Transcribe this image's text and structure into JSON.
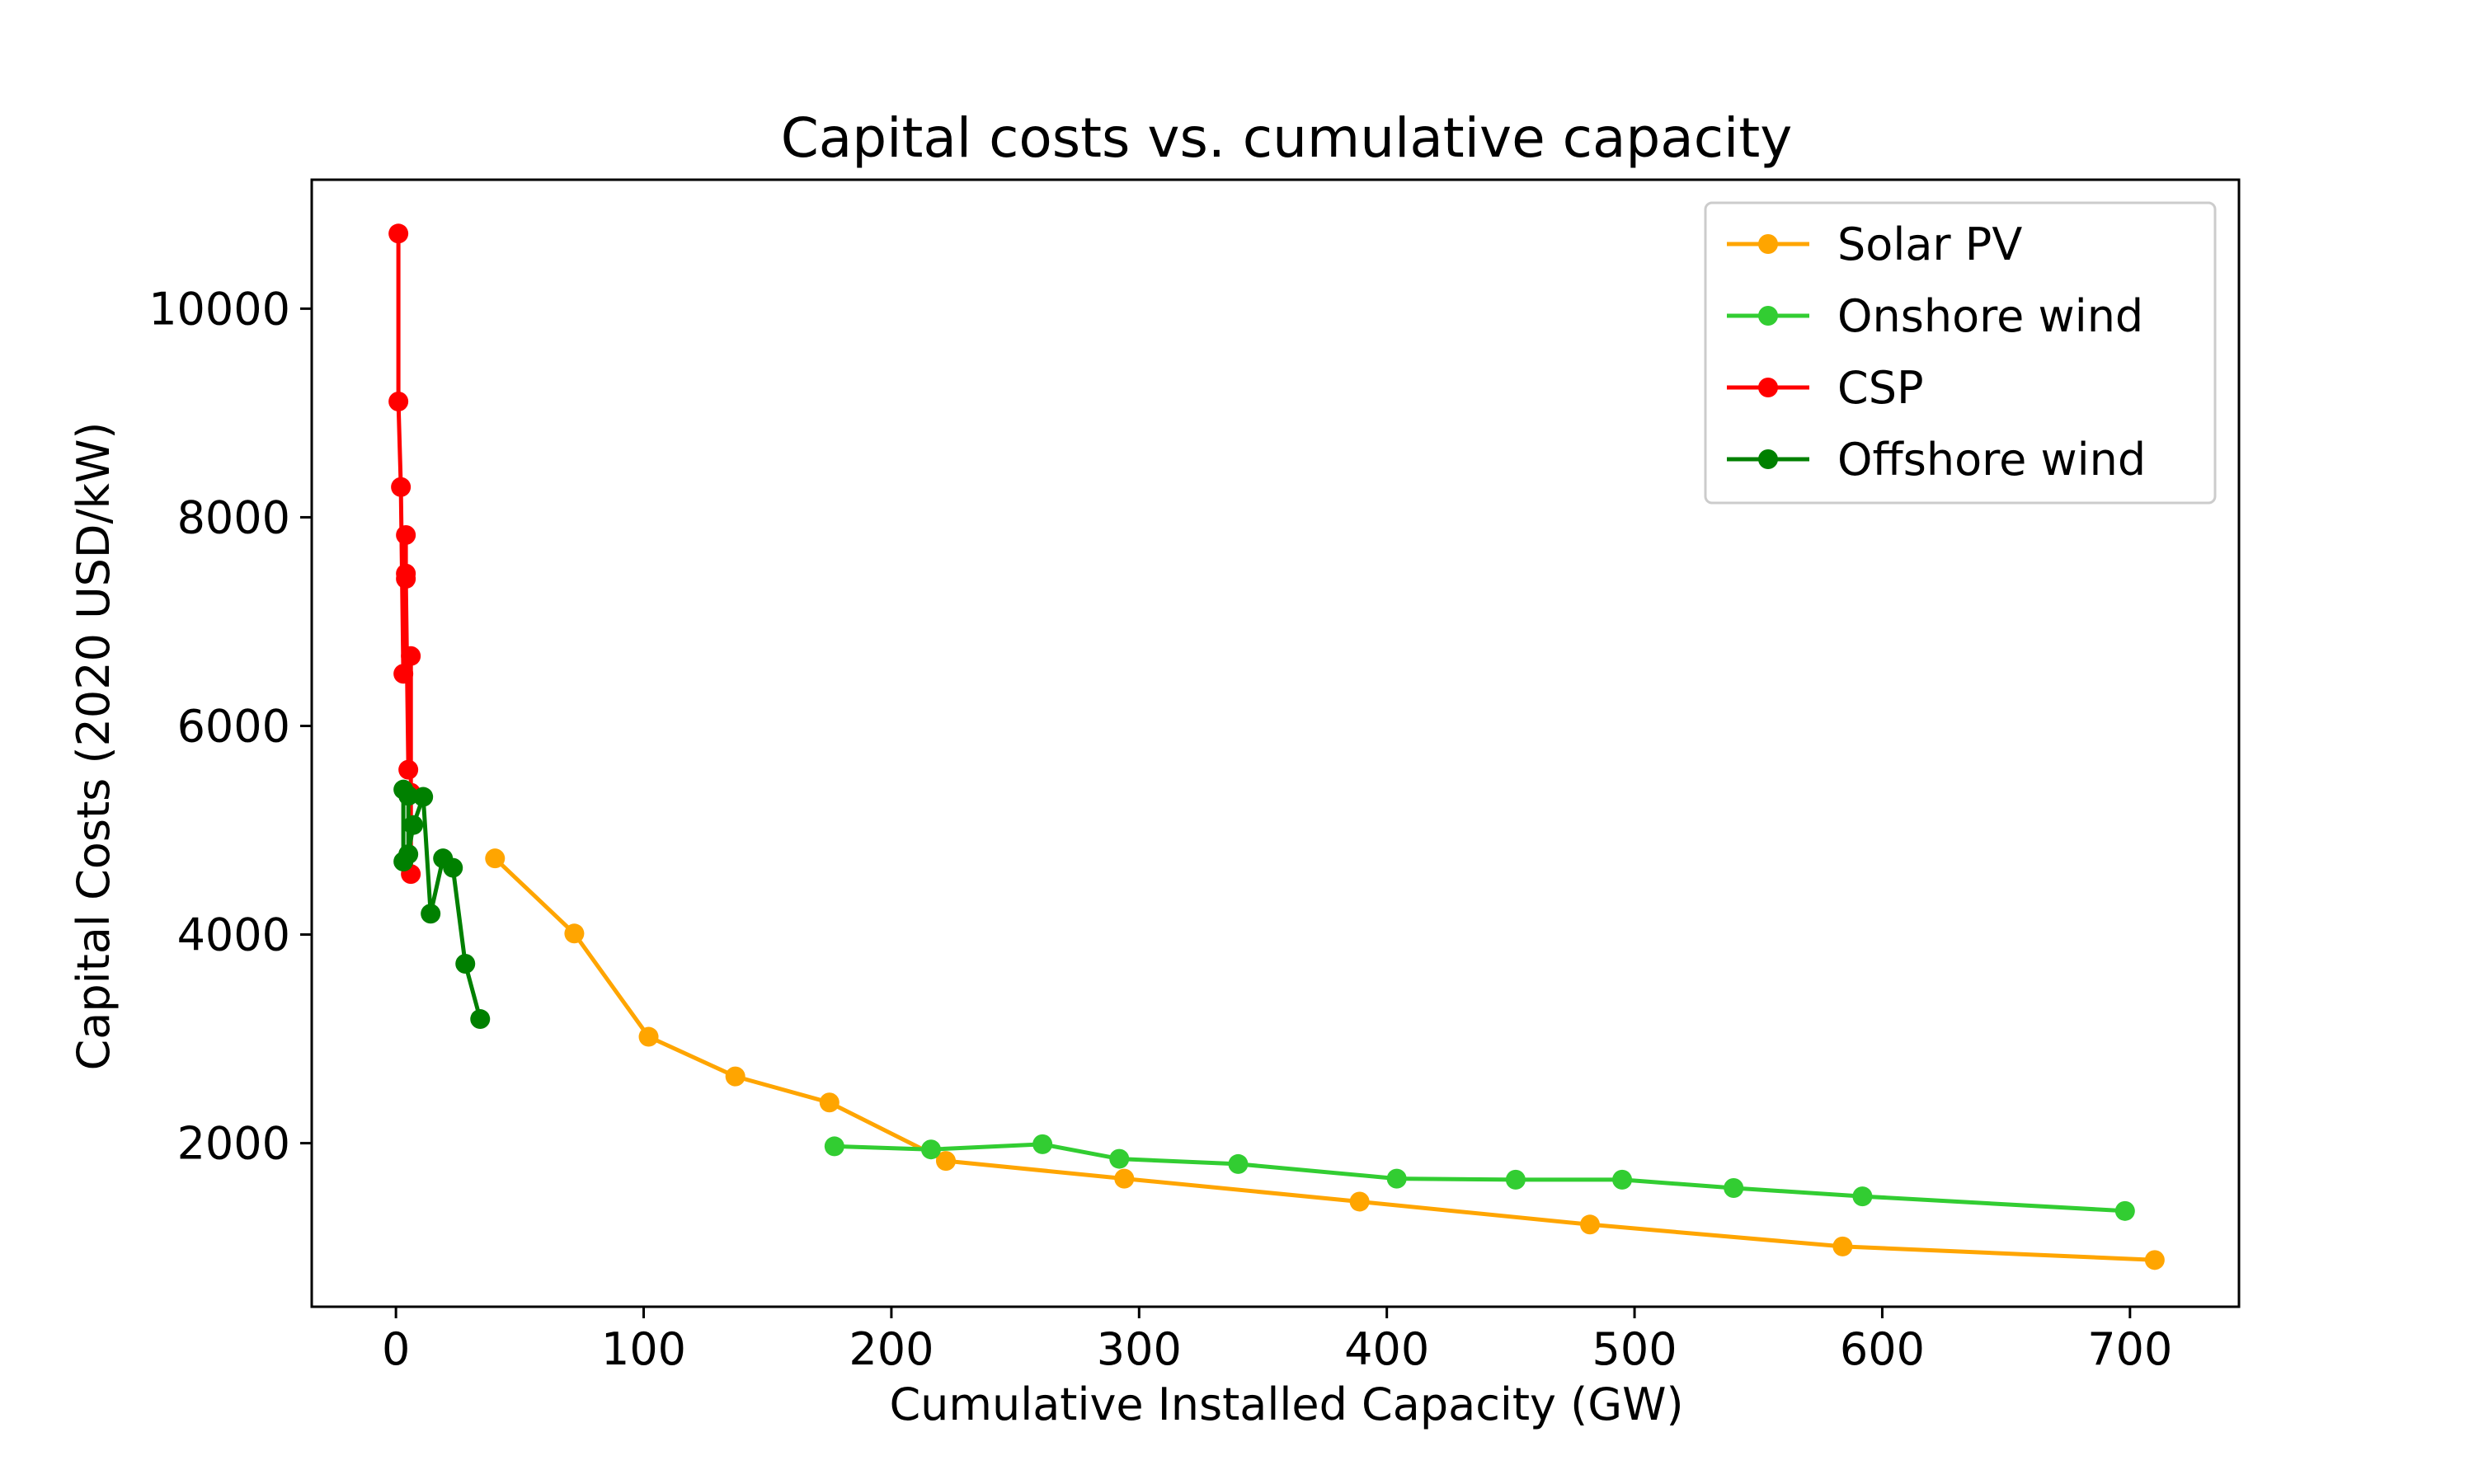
{
  "chart_data": {
    "type": "line",
    "title": "Capital costs vs. cumulative capacity",
    "xlabel": "Cumulative Installed Capacity (GW)",
    "ylabel": "Capital Costs (2020 USD/kW)",
    "xlim": [
      -34,
      744
    ],
    "ylim": [
      432,
      11236
    ],
    "xticks": [
      0,
      100,
      200,
      300,
      400,
      500,
      600,
      700
    ],
    "yticks": [
      2000,
      4000,
      6000,
      8000,
      10000
    ],
    "grid": false,
    "legend_position": "top-right",
    "series": [
      {
        "name": "Solar PV",
        "color": "#FFA500",
        "x": [
          40,
          72,
          102,
          137,
          175,
          222,
          294,
          389,
          482,
          584,
          710
        ],
        "y": [
          4730,
          4010,
          3020,
          2640,
          2390,
          1830,
          1660,
          1440,
          1220,
          1010,
          880
        ]
      },
      {
        "name": "Onshore wind",
        "color": "#32CD32",
        "x": [
          177,
          216,
          261,
          292,
          340,
          404,
          452,
          495,
          540,
          592,
          698
        ],
        "y": [
          1970,
          1940,
          1990,
          1850,
          1800,
          1660,
          1650,
          1650,
          1570,
          1490,
          1350
        ]
      },
      {
        "name": "CSP",
        "color": "#FF0000",
        "x": [
          1,
          1,
          2,
          3,
          4,
          4,
          4,
          5,
          6,
          6,
          6
        ],
        "y": [
          10720,
          9110,
          8290,
          6500,
          7830,
          7460,
          7410,
          5580,
          6670,
          5360,
          4580
        ]
      },
      {
        "name": "Offshore wind",
        "color": "#008000",
        "x": [
          3,
          3,
          5,
          5,
          7,
          11,
          14,
          19,
          23,
          28,
          34
        ],
        "y": [
          4700,
          5390,
          5330,
          4770,
          5050,
          5320,
          4200,
          4730,
          4640,
          3720,
          3190
        ]
      }
    ]
  }
}
